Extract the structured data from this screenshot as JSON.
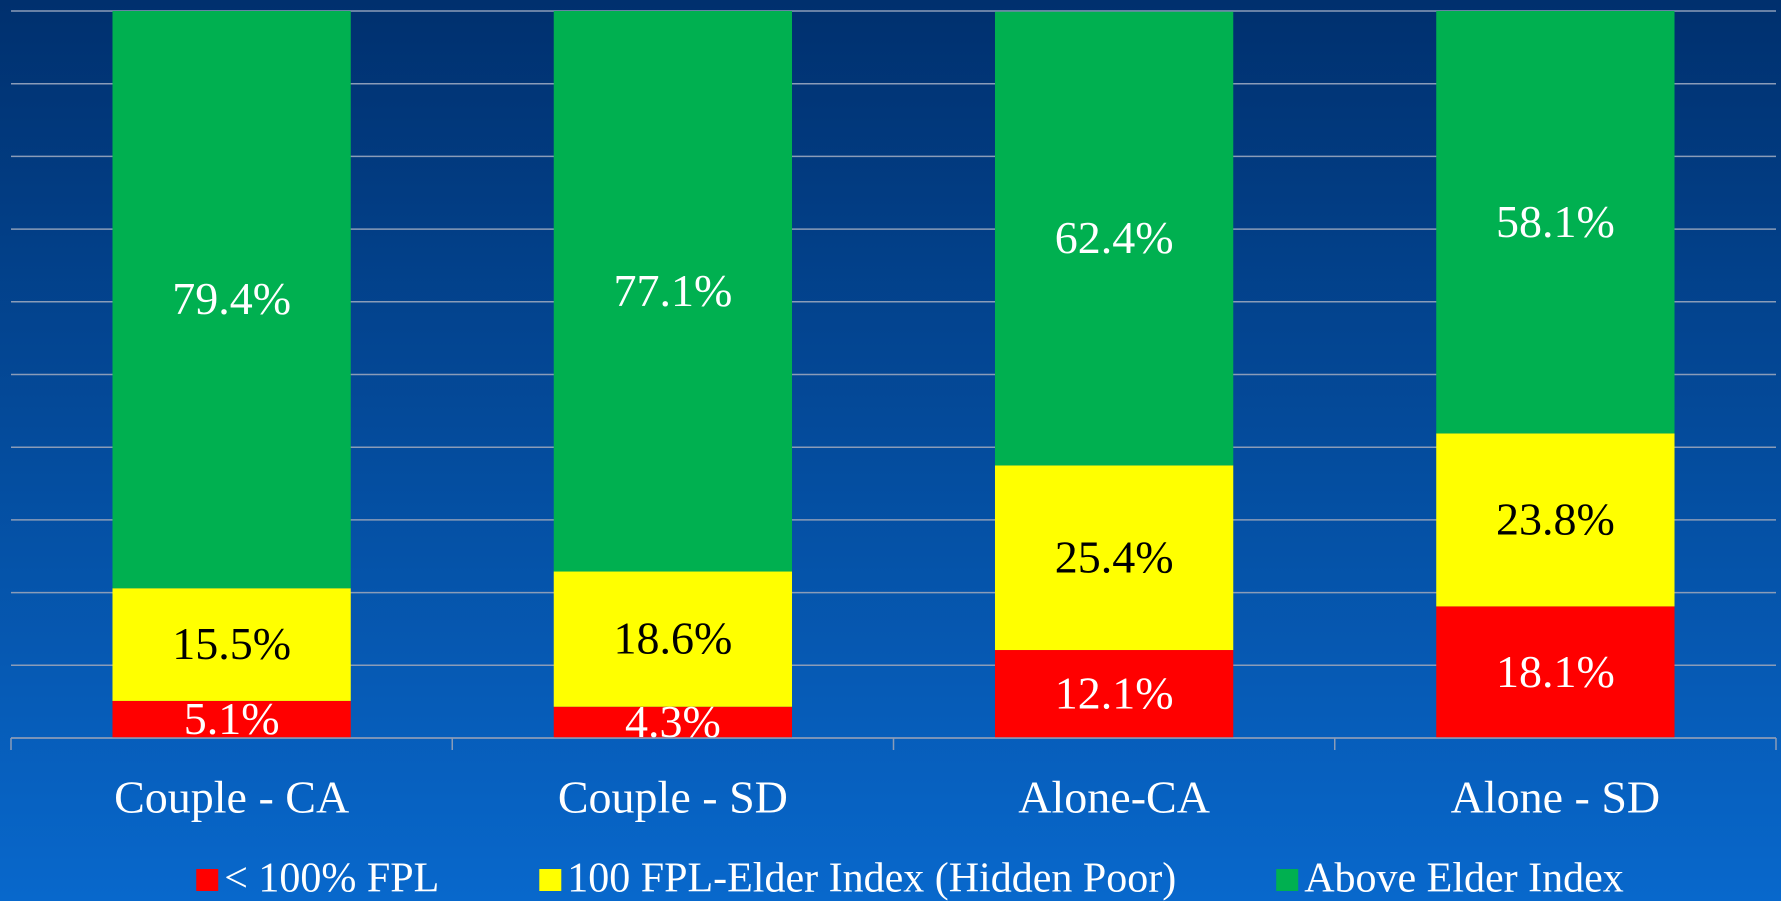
{
  "chart_data": {
    "type": "stacked_bar",
    "categories": [
      "Couple - CA",
      "Couple - SD",
      "Alone-CA",
      "Alone - SD"
    ],
    "series": [
      {
        "name": "< 100% FPL",
        "color": "#ff0000",
        "label_color": "#ffffff",
        "values": [
          5.1,
          4.3,
          12.1,
          18.1
        ],
        "value_labels": [
          "5.1%",
          "4.3%",
          "12.1%",
          "18.1%"
        ]
      },
      {
        "name": "100 FPL-Elder Index (Hidden Poor)",
        "color": "#ffff00",
        "label_color": "#000000",
        "values": [
          15.5,
          18.6,
          25.4,
          23.8
        ],
        "value_labels": [
          "15.5%",
          "18.6%",
          "25.4%",
          "23.8%"
        ]
      },
      {
        "name": "Above Elder Index",
        "color": "#00b050",
        "label_color": "#ffffff",
        "values": [
          79.4,
          77.1,
          62.4,
          58.1
        ],
        "value_labels": [
          "79.4%",
          "77.1%",
          "62.4%",
          "58.1%"
        ]
      }
    ],
    "ylim": [
      0,
      100
    ],
    "yticks": [
      0,
      10,
      20,
      30,
      40,
      50,
      60,
      70,
      80,
      90,
      100
    ],
    "grid": true,
    "legend": "bottom"
  }
}
